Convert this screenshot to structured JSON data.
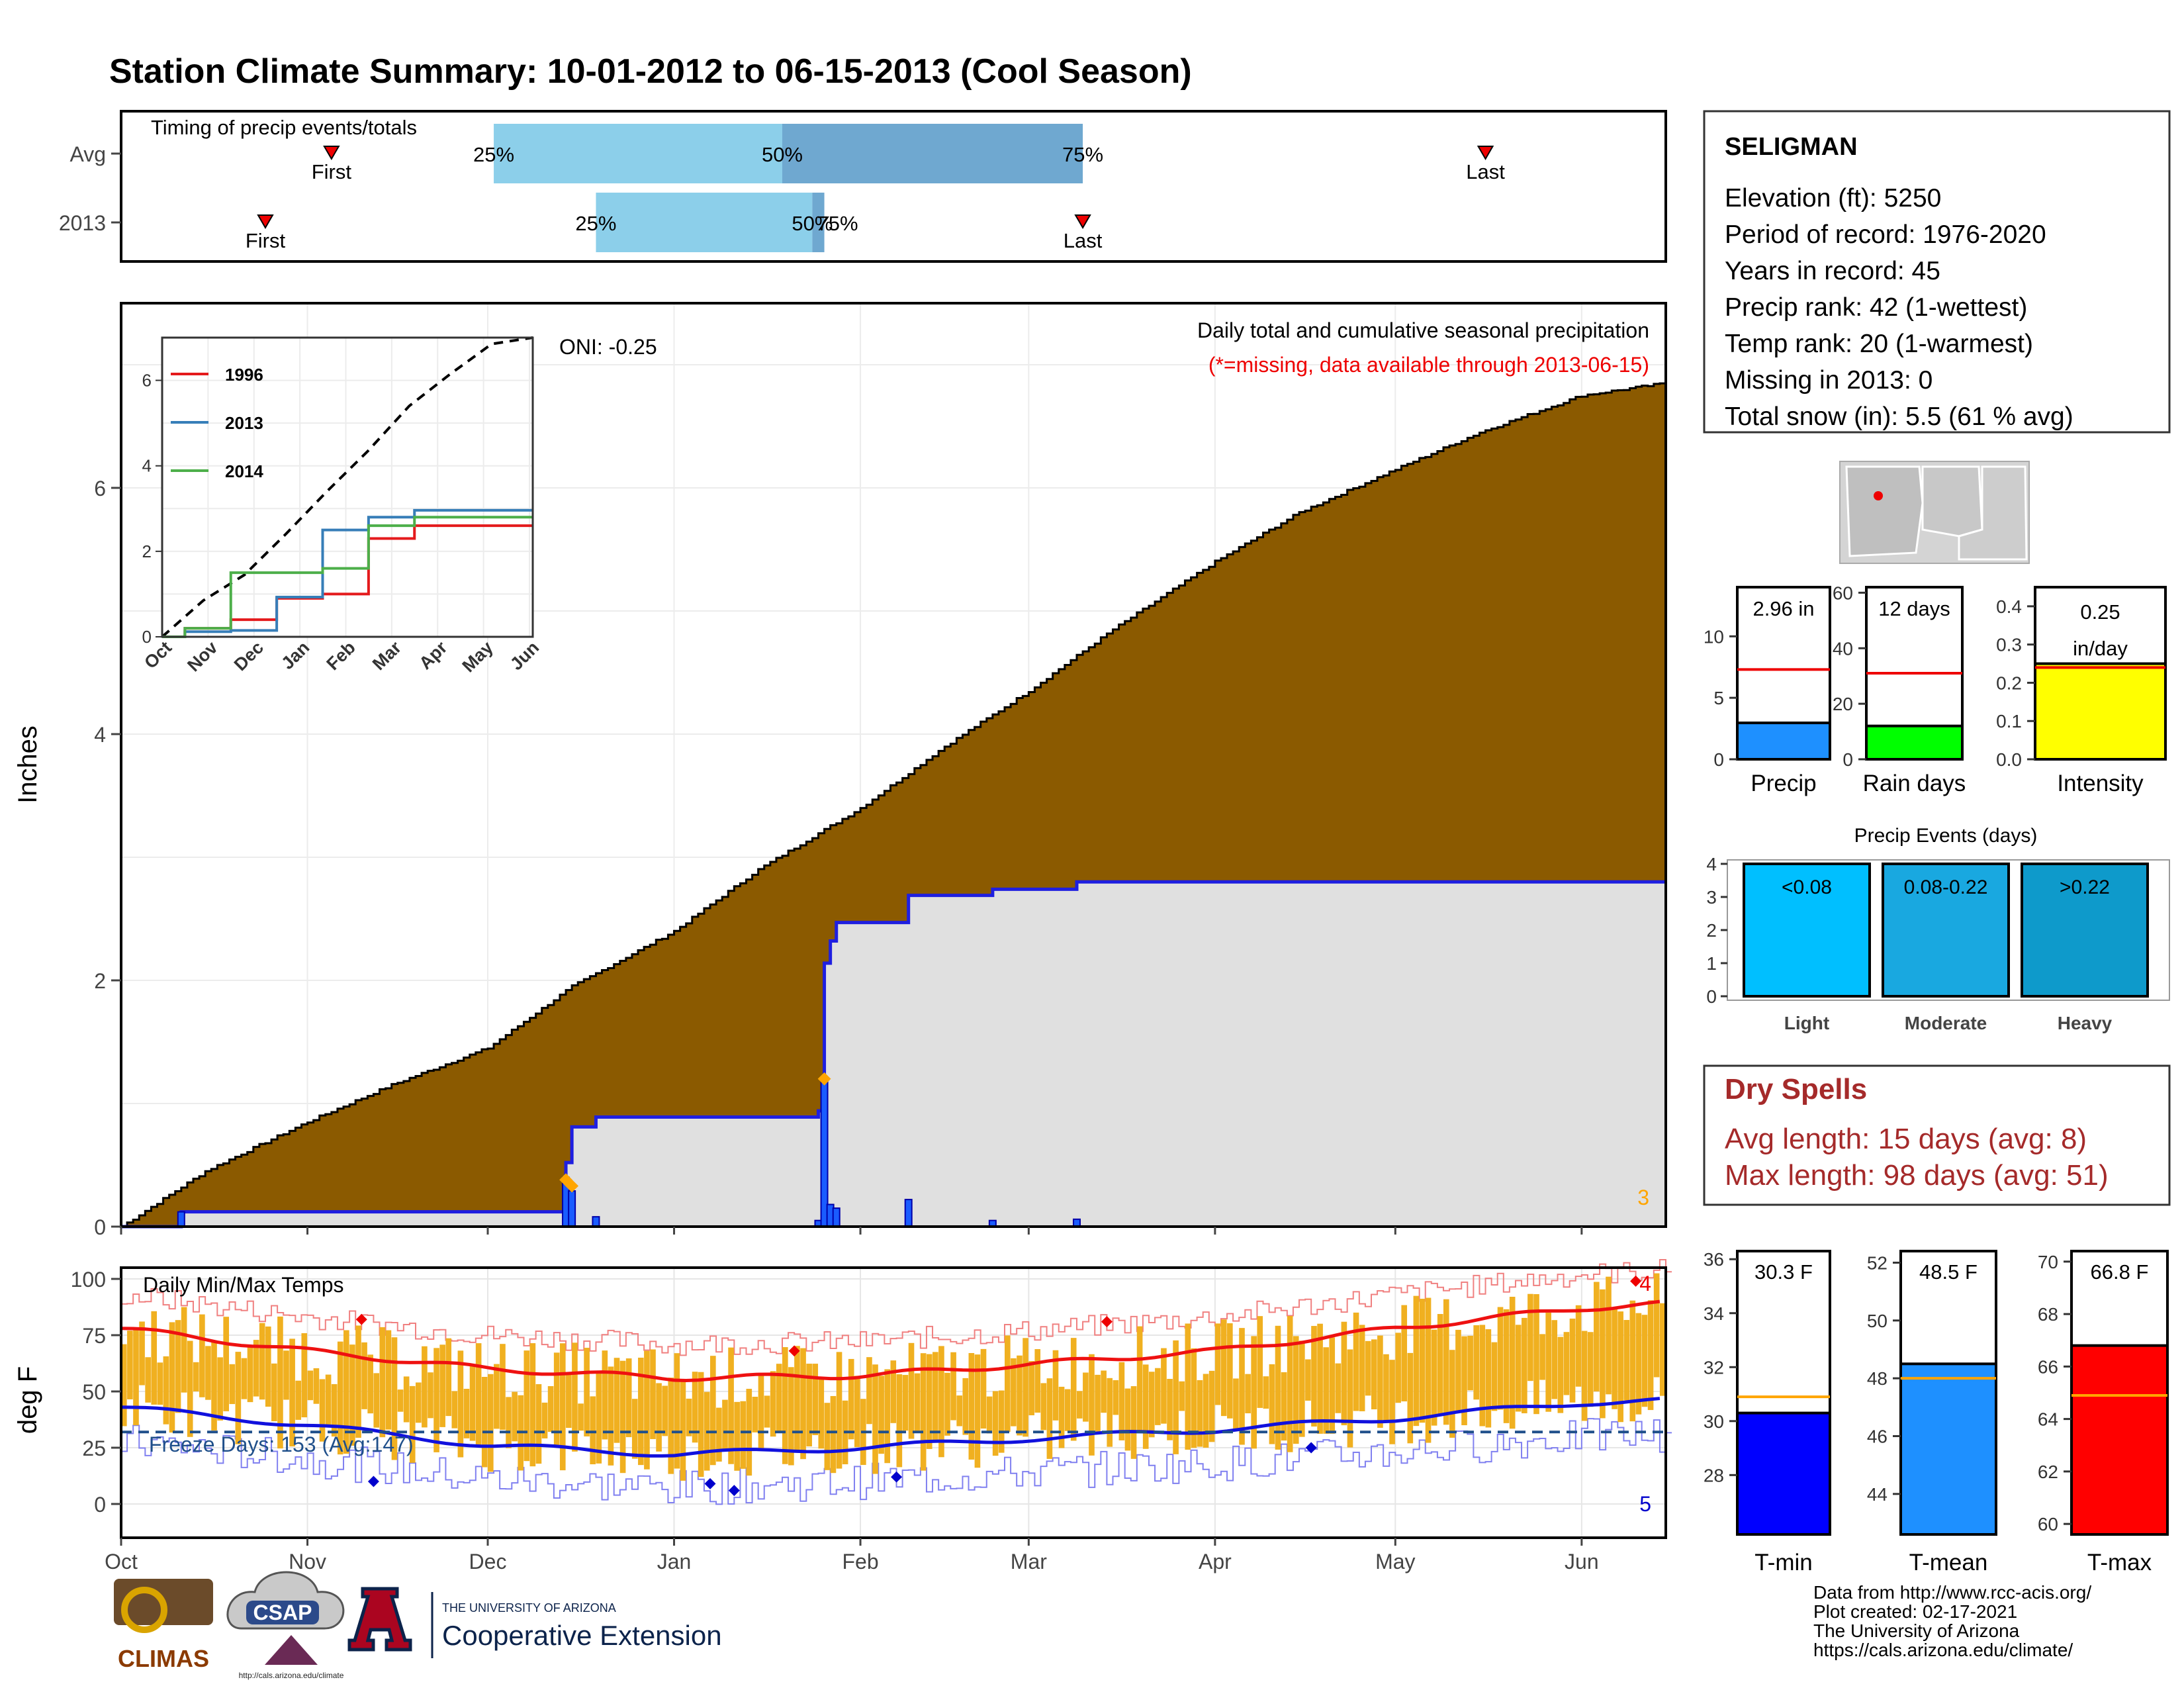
{
  "title": "Station Climate Summary: 10-01-2012 to 06-15-2013 (Cool Season)",
  "timing": {
    "label": "Timing of precip events/totals",
    "rows": [
      {
        "name": "Avg",
        "first": "First",
        "last": "Last",
        "p25": "25%",
        "p50": "50%",
        "p75": "75%"
      },
      {
        "name": "2013",
        "first": "First",
        "last": "Last",
        "p25": "25%",
        "p50": "50%",
        "p75": "75%"
      }
    ]
  },
  "station": {
    "name": "SELIGMAN",
    "lines": [
      "Elevation (ft): 5250",
      "Period of record: 1976-2020",
      "Years in record: 45",
      "Precip rank: 42 (1-wettest)",
      "Temp rank: 20 (1-warmest)",
      "Missing in 2013: 0",
      "Total snow (in): 5.5 (61 % avg)"
    ]
  },
  "main": {
    "ylabel": "Inches",
    "title": "Daily total and cumulative seasonal precipitation",
    "note": "(*=missing, data available through 2013-06-15)",
    "oni": "ONI: -0.25",
    "corner": "3",
    "yticks": [
      "0",
      "2",
      "4",
      "6"
    ],
    "months": [
      "Oct",
      "Nov",
      "Dec",
      "Jan",
      "Feb",
      "Mar",
      "Apr",
      "May",
      "Jun"
    ]
  },
  "inset": {
    "yticks": [
      "0",
      "2",
      "4",
      "6"
    ],
    "months": [
      "Oct",
      "Nov",
      "Dec",
      "Jan",
      "Feb",
      "Mar",
      "Apr",
      "May",
      "Jun"
    ],
    "legend": [
      "1996",
      "2013",
      "2014"
    ]
  },
  "temps": {
    "ylabel": "deg F",
    "title": "Daily Min/Max Temps",
    "freeze": "Freeze Days: 153 (Avg:147)",
    "yticks": [
      "0",
      "25",
      "50",
      "75",
      "100"
    ],
    "max_count": "4",
    "min_count": "5"
  },
  "mini_bars": [
    {
      "label": "Precip",
      "value_text": "2.96 in",
      "yticks": [
        "0",
        "5",
        "10"
      ]
    },
    {
      "label": "Rain days",
      "value_text": "12 days",
      "yticks": [
        "0",
        "20",
        "40",
        "60"
      ]
    },
    {
      "label": "Intensity",
      "value_text": "0.25 in/day",
      "yticks": [
        "0.0",
        "0.1",
        "0.2",
        "0.3",
        "0.4"
      ]
    }
  ],
  "events": {
    "title": "Precip Events (days)",
    "yticks": [
      "0",
      "1",
      "2",
      "3",
      "4"
    ],
    "bars": [
      {
        "label": "Light",
        "range": "<0.08"
      },
      {
        "label": "Moderate",
        "range": "0.08-0.22"
      },
      {
        "label": "Heavy",
        "range": ">0.22"
      }
    ]
  },
  "dry": {
    "title": "Dry Spells",
    "line1": "Avg length: 15 days (avg: 8)",
    "line2": "Max length: 98 days (avg: 51)"
  },
  "temp_bars": [
    {
      "label": "T-min",
      "value_text": "30.3 F",
      "yticks": [
        "28",
        "30",
        "32",
        "34",
        "36"
      ]
    },
    {
      "label": "T-mean",
      "value_text": "48.5 F",
      "yticks": [
        "44",
        "46",
        "48",
        "50",
        "52"
      ]
    },
    {
      "label": "T-max",
      "value_text": "66.8 F",
      "yticks": [
        "60",
        "62",
        "64",
        "66",
        "68",
        "70"
      ]
    }
  ],
  "footer": [
    "Data from http://www.rcc-acis.org/",
    "Plot created: 02-17-2021",
    "The University of Arizona",
    "https://cals.arizona.edu/climate/"
  ],
  "logos": {
    "climas": "CLIMAS",
    "csap": "CSAP",
    "csap_url": "http://cals.arizona.edu/climate",
    "ua": "A",
    "ua_top": "THE UNIVERSITY OF ARIZONA",
    "ua_bottom": "Cooperative Extension"
  },
  "colors": {
    "title": "#2b4185",
    "cumulative_fill": "#8b5a00",
    "precip_line": "#1f1fe0",
    "bar_light": "#8ccfea",
    "bar_dark": "#6fa8d0",
    "temp_bar": "#f0b020",
    "tmax_line": "#ee1111",
    "tmin_line": "#1111dd",
    "dry_text": "#a52a2a"
  },
  "chart_data": [
    {
      "type": "bar",
      "title": "Timing of precip events/totals",
      "categories": [
        "Avg",
        "2013"
      ],
      "series": [
        {
          "name": "First",
          "values": [
            "2012-11-05",
            "2012-10-25"
          ]
        },
        {
          "name": "25%",
          "values": [
            "2012-12-02",
            "2012-12-19"
          ]
        },
        {
          "name": "50%",
          "values": [
            "2013-01-19",
            "2013-01-24"
          ]
        },
        {
          "name": "75%",
          "values": [
            "2013-03-10",
            "2013-01-26"
          ]
        },
        {
          "name": "Last",
          "values": [
            "2013-05-16",
            "2013-03-10"
          ]
        }
      ]
    },
    {
      "type": "area",
      "title": "Daily total and cumulative seasonal precipitation",
      "ylabel": "Inches",
      "ylim": [
        0,
        7.5
      ],
      "x": [
        "2012-10-01",
        "2012-10-15",
        "2012-11-01",
        "2012-11-15",
        "2012-12-01",
        "2012-12-15",
        "2013-01-01",
        "2013-01-15",
        "2013-02-01",
        "2013-02-15",
        "2013-03-01",
        "2013-03-15",
        "2013-04-01",
        "2013-04-15",
        "2013-05-01",
        "2013-05-15",
        "2013-06-01",
        "2013-06-15"
      ],
      "series": [
        {
          "name": "Average cumulative",
          "values": [
            0.0,
            0.45,
            0.85,
            1.15,
            1.45,
            1.95,
            2.4,
            2.9,
            3.4,
            3.9,
            4.35,
            4.85,
            5.4,
            5.8,
            6.15,
            6.45,
            6.75,
            6.85
          ]
        },
        {
          "name": "2013 cumulative",
          "values": [
            0.0,
            0.12,
            0.12,
            0.12,
            0.12,
            0.93,
            0.93,
            0.93,
            2.5,
            2.7,
            2.8,
            2.96,
            2.96,
            2.96,
            2.96,
            2.96,
            2.96,
            2.96
          ]
        }
      ],
      "daily_2013": {
        "dates": [
          "2012-10-11",
          "2012-12-14",
          "2012-12-15",
          "2012-12-19",
          "2013-01-25",
          "2013-01-26",
          "2013-01-27",
          "2013-01-28",
          "2013-02-09",
          "2013-02-23",
          "2013-03-09"
        ],
        "values": [
          0.12,
          0.4,
          0.29,
          0.08,
          0.05,
          1.2,
          0.18,
          0.15,
          0.22,
          0.05,
          0.06
        ]
      }
    },
    {
      "type": "line",
      "ylim": [
        0,
        7
      ],
      "x": [
        "Oct",
        "Nov",
        "Dec",
        "Jan",
        "Feb",
        "Mar",
        "Apr",
        "May",
        "Jun"
      ],
      "series": [
        {
          "name": "1996",
          "values": [
            0.0,
            0.2,
            0.4,
            0.9,
            1.0,
            2.3,
            2.6,
            2.6,
            2.6
          ]
        },
        {
          "name": "2013",
          "values": [
            0.0,
            0.12,
            0.15,
            0.93,
            2.5,
            2.8,
            2.96,
            2.96,
            2.96
          ]
        },
        {
          "name": "2014",
          "values": [
            0.0,
            0.2,
            1.5,
            1.5,
            1.6,
            2.6,
            2.8,
            2.8,
            2.8
          ]
        }
      ]
    },
    {
      "type": "bar",
      "title": "Daily Min/Max Temps",
      "ylabel": "deg F",
      "ylim": [
        -15,
        105
      ],
      "x": [
        "2012-10-01",
        "2012-11-01",
        "2012-12-01",
        "2013-01-01",
        "2013-02-01",
        "2013-03-01",
        "2013-04-01",
        "2013-05-01",
        "2013-06-01",
        "2013-06-15"
      ],
      "series": [
        {
          "name": "Normal Tmax",
          "values": [
            78,
            68,
            60,
            56,
            57,
            62,
            68,
            78,
            87,
            89
          ]
        },
        {
          "name": "Normal Tmin",
          "values": [
            43,
            35,
            26,
            22,
            25,
            29,
            33,
            38,
            45,
            46
          ]
        },
        {
          "name": "Freeze line",
          "values": [
            32,
            32,
            32,
            32,
            32,
            32,
            32,
            32,
            32,
            32
          ]
        }
      ]
    },
    {
      "type": "bar",
      "categories": [
        "Precip",
        "Rain days",
        "Intensity"
      ],
      "series": [
        {
          "name": "2013",
          "values": [
            2.96,
            12,
            0.25
          ]
        },
        {
          "name": "Average",
          "values": [
            7.3,
            31,
            0.24
          ]
        }
      ]
    },
    {
      "type": "bar",
      "title": "Precip Events (days)",
      "ylim": [
        0,
        4
      ],
      "categories": [
        "Light",
        "Moderate",
        "Heavy"
      ],
      "values": [
        4,
        4,
        4
      ]
    },
    {
      "type": "bar",
      "categories": [
        "T-min",
        "T-mean",
        "T-max"
      ],
      "series": [
        {
          "name": "2013",
          "values": [
            30.3,
            48.5,
            66.8
          ]
        },
        {
          "name": "Average",
          "values": [
            30.9,
            48.0,
            64.9
          ]
        }
      ]
    }
  ]
}
